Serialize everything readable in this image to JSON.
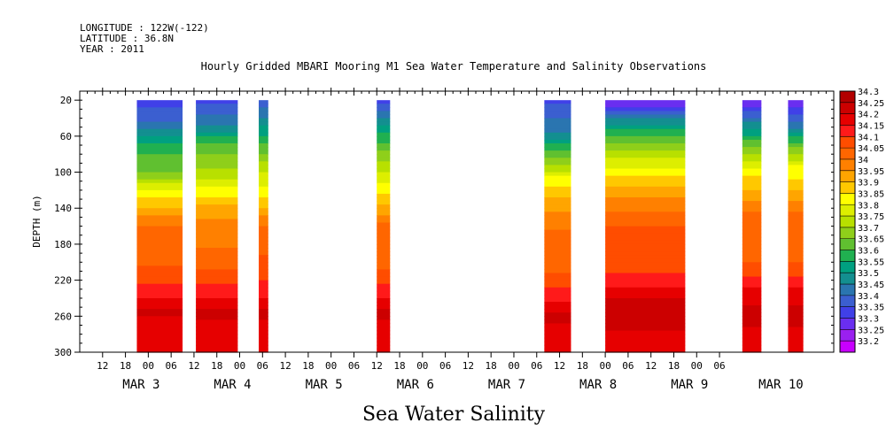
{
  "header": {
    "longitude": "LONGITUDE : 122W(-122)",
    "latitude": "LATITUDE : 36.8N",
    "year": "YEAR : 2011"
  },
  "chart_data": {
    "type": "heatmap",
    "title": "Hourly Gridded MBARI Mooring M1 Sea Water Temperature and Salinity Observations",
    "xlabel": "Sea Water Salinity",
    "ylabel": "DEPTH (m)",
    "xlim": [
      "2011-03-02T06:00",
      "2011-03-10T12:00"
    ],
    "ylim": [
      300,
      10
    ],
    "y_ticks": [
      20,
      60,
      100,
      140,
      180,
      220,
      260,
      300
    ],
    "x_hour_ticks": [
      {
        "t": "2011-03-02T12:00",
        "label": "12"
      },
      {
        "t": "2011-03-02T18:00",
        "label": "18"
      },
      {
        "t": "2011-03-03T00:00",
        "label": "00"
      },
      {
        "t": "2011-03-03T06:00",
        "label": "06"
      },
      {
        "t": "2011-03-03T12:00",
        "label": "12"
      },
      {
        "t": "2011-03-03T18:00",
        "label": "18"
      },
      {
        "t": "2011-03-04T00:00",
        "label": "00"
      },
      {
        "t": "2011-03-04T06:00",
        "label": "06"
      },
      {
        "t": "2011-03-04T12:00",
        "label": "12"
      },
      {
        "t": "2011-03-04T18:00",
        "label": "18"
      },
      {
        "t": "2011-03-05T00:00",
        "label": "00"
      },
      {
        "t": "2011-03-05T06:00",
        "label": "06"
      },
      {
        "t": "2011-03-05T12:00",
        "label": "12"
      },
      {
        "t": "2011-03-05T18:00",
        "label": "18"
      },
      {
        "t": "2011-03-06T00:00",
        "label": "00"
      },
      {
        "t": "2011-03-06T06:00",
        "label": "06"
      },
      {
        "t": "2011-03-06T12:00",
        "label": "12"
      },
      {
        "t": "2011-03-06T18:00",
        "label": "18"
      },
      {
        "t": "2011-03-07T00:00",
        "label": "00"
      },
      {
        "t": "2011-03-07T06:00",
        "label": "06"
      },
      {
        "t": "2011-03-07T12:00",
        "label": "12"
      },
      {
        "t": "2011-03-07T18:00",
        "label": "18"
      },
      {
        "t": "2011-03-08T00:00",
        "label": "00"
      },
      {
        "t": "2011-03-08T06:00",
        "label": "06"
      },
      {
        "t": "2011-03-08T12:00",
        "label": "12"
      },
      {
        "t": "2011-03-08T18:00",
        "label": "18"
      },
      {
        "t": "2011-03-09T00:00",
        "label": "00"
      },
      {
        "t": "2011-03-09T06:00",
        "label": "06"
      }
    ],
    "x_day_labels": [
      {
        "t": "2011-03-03T00:00",
        "label": "MAR  3"
      },
      {
        "t": "2011-03-04T00:00",
        "label": "MAR  4"
      },
      {
        "t": "2011-03-05T00:00",
        "label": "MAR  5"
      },
      {
        "t": "2011-03-06T00:00",
        "label": "MAR  6"
      },
      {
        "t": "2011-03-07T00:00",
        "label": "MAR  7"
      },
      {
        "t": "2011-03-08T00:00",
        "label": "MAR  8"
      },
      {
        "t": "2011-03-09T00:00",
        "label": "MAR  9"
      },
      {
        "t": "2011-03-10T00:00",
        "label": "MAR 10"
      }
    ],
    "legend": {
      "placement": "right",
      "levels": [
        "34.3",
        "34.25",
        "34.2",
        "34.15",
        "34.1",
        "34.05",
        "34",
        "33.95",
        "33.9",
        "33.85",
        "33.8",
        "33.75",
        "33.7",
        "33.65",
        "33.6",
        "33.55",
        "33.5",
        "33.45",
        "33.4",
        "33.35",
        "33.3",
        "33.25",
        "33.2"
      ],
      "colors": [
        "#b30000",
        "#cc0000",
        "#e60000",
        "#ff1a1a",
        "#ff4d00",
        "#ff6600",
        "#ff8000",
        "#ffa500",
        "#ffc800",
        "#ffff00",
        "#ddee00",
        "#b8e000",
        "#8fcf1a",
        "#60c030",
        "#20b050",
        "#00a080",
        "#138f90",
        "#2a75b0",
        "#3b5fd0",
        "#4040e8",
        "#6a2ef0",
        "#9a20f0",
        "#c800ff"
      ]
    },
    "segments": [
      {
        "start": "2011-03-02T21:00",
        "end": "2011-03-03T09:00",
        "profile": [
          {
            "depth": 20,
            "value": 33.36
          },
          {
            "depth": 50,
            "value": 33.48
          },
          {
            "depth": 75,
            "value": 33.64
          },
          {
            "depth": 100,
            "value": 33.7
          },
          {
            "depth": 120,
            "value": 33.85
          },
          {
            "depth": 140,
            "value": 33.95
          },
          {
            "depth": 160,
            "value": 34.05
          },
          {
            "depth": 190,
            "value": 34.07
          },
          {
            "depth": 215,
            "value": 34.12
          },
          {
            "depth": 240,
            "value": 34.2
          },
          {
            "depth": 255,
            "value": 34.26
          },
          {
            "depth": 275,
            "value": 34.22
          },
          {
            "depth": 300,
            "value": 34.2
          }
        ]
      },
      {
        "start": "2011-03-03T12:30",
        "end": "2011-03-03T23:30",
        "profile": [
          {
            "depth": 20,
            "value": 33.38
          },
          {
            "depth": 50,
            "value": 33.5
          },
          {
            "depth": 70,
            "value": 33.68
          },
          {
            "depth": 95,
            "value": 33.74
          },
          {
            "depth": 120,
            "value": 33.86
          },
          {
            "depth": 140,
            "value": 33.97
          },
          {
            "depth": 165,
            "value": 34.03
          },
          {
            "depth": 195,
            "value": 34.06
          },
          {
            "depth": 215,
            "value": 34.13
          },
          {
            "depth": 240,
            "value": 34.2
          },
          {
            "depth": 255,
            "value": 34.27
          },
          {
            "depth": 275,
            "value": 34.22
          },
          {
            "depth": 300,
            "value": 34.2
          }
        ]
      },
      {
        "start": "2011-03-04T05:00",
        "end": "2011-03-04T07:30",
        "profile": [
          {
            "depth": 20,
            "value": 33.4
          },
          {
            "depth": 60,
            "value": 33.6
          },
          {
            "depth": 100,
            "value": 33.8
          },
          {
            "depth": 130,
            "value": 33.9
          },
          {
            "depth": 160,
            "value": 34.06
          },
          {
            "depth": 210,
            "value": 34.12
          },
          {
            "depth": 240,
            "value": 34.2
          },
          {
            "depth": 255,
            "value": 34.26
          },
          {
            "depth": 300,
            "value": 34.2
          }
        ]
      },
      {
        "start": "2011-03-05T12:00",
        "end": "2011-03-05T15:30",
        "profile": [
          {
            "depth": 20,
            "value": 33.38
          },
          {
            "depth": 60,
            "value": 33.62
          },
          {
            "depth": 100,
            "value": 33.8
          },
          {
            "depth": 130,
            "value": 33.92
          },
          {
            "depth": 160,
            "value": 34.06
          },
          {
            "depth": 210,
            "value": 34.1
          },
          {
            "depth": 240,
            "value": 34.2
          },
          {
            "depth": 255,
            "value": 34.26
          },
          {
            "depth": 300,
            "value": 34.2
          }
        ]
      },
      {
        "start": "2011-03-07T08:00",
        "end": "2011-03-07T15:00",
        "profile": [
          {
            "depth": 20,
            "value": 33.38
          },
          {
            "depth": 55,
            "value": 33.5
          },
          {
            "depth": 85,
            "value": 33.7
          },
          {
            "depth": 110,
            "value": 33.88
          },
          {
            "depth": 135,
            "value": 33.98
          },
          {
            "depth": 165,
            "value": 34.05
          },
          {
            "depth": 200,
            "value": 34.06
          },
          {
            "depth": 220,
            "value": 34.13
          },
          {
            "depth": 245,
            "value": 34.2
          },
          {
            "depth": 260,
            "value": 34.26
          },
          {
            "depth": 300,
            "value": 34.2
          }
        ]
      },
      {
        "start": "2011-03-08T00:00",
        "end": "2011-03-08T21:00",
        "profile": [
          {
            "depth": 20,
            "value": 33.28
          },
          {
            "depth": 35,
            "value": 33.45
          },
          {
            "depth": 60,
            "value": 33.66
          },
          {
            "depth": 85,
            "value": 33.8
          },
          {
            "depth": 105,
            "value": 33.9
          },
          {
            "depth": 130,
            "value": 34.0
          },
          {
            "depth": 160,
            "value": 34.1
          },
          {
            "depth": 200,
            "value": 34.12
          },
          {
            "depth": 225,
            "value": 34.18
          },
          {
            "depth": 240,
            "value": 34.25
          },
          {
            "depth": 260,
            "value": 34.29
          },
          {
            "depth": 280,
            "value": 34.24
          },
          {
            "depth": 300,
            "value": 34.2
          }
        ]
      },
      {
        "start": "2011-03-09T12:00",
        "end": "2011-03-09T17:00",
        "profile": [
          {
            "depth": 20,
            "value": 33.3
          },
          {
            "depth": 45,
            "value": 33.5
          },
          {
            "depth": 75,
            "value": 33.72
          },
          {
            "depth": 100,
            "value": 33.88
          },
          {
            "depth": 125,
            "value": 33.97
          },
          {
            "depth": 150,
            "value": 34.08
          },
          {
            "depth": 200,
            "value": 34.1
          },
          {
            "depth": 225,
            "value": 34.18
          },
          {
            "depth": 240,
            "value": 34.24
          },
          {
            "depth": 260,
            "value": 34.27
          },
          {
            "depth": 300,
            "value": 34.2
          }
        ]
      },
      {
        "start": "2011-03-10T00:00",
        "end": "2011-03-10T04:00",
        "profile": [
          {
            "depth": 20,
            "value": 33.3
          },
          {
            "depth": 45,
            "value": 33.45
          },
          {
            "depth": 70,
            "value": 33.68
          },
          {
            "depth": 95,
            "value": 33.86
          },
          {
            "depth": 125,
            "value": 33.96
          },
          {
            "depth": 150,
            "value": 34.08
          },
          {
            "depth": 200,
            "value": 34.1
          },
          {
            "depth": 225,
            "value": 34.18
          },
          {
            "depth": 240,
            "value": 34.24
          },
          {
            "depth": 260,
            "value": 34.27
          },
          {
            "depth": 300,
            "value": 34.2
          }
        ]
      }
    ]
  }
}
